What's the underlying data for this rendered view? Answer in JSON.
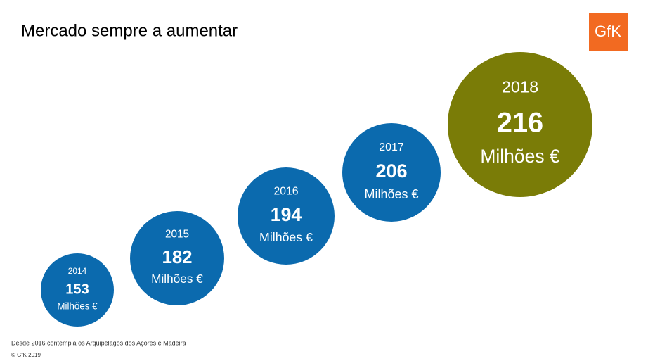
{
  "chart_data": {
    "type": "bubble",
    "title": "Mercado sempre a aumentar",
    "categories": [
      "2014",
      "2015",
      "2016",
      "2017",
      "2018"
    ],
    "values": [
      153,
      182,
      194,
      206,
      216
    ],
    "unit": "Milhões €",
    "colors": [
      "#0b6aae",
      "#0b6aae",
      "#0b6aae",
      "#0b6aae",
      "#7a7c07"
    ],
    "footnote": "Desde 2016 contempla os Arquipélagos dos Açores e Madeira",
    "copyright": "© GfK 2019",
    "logo": "GfK"
  }
}
